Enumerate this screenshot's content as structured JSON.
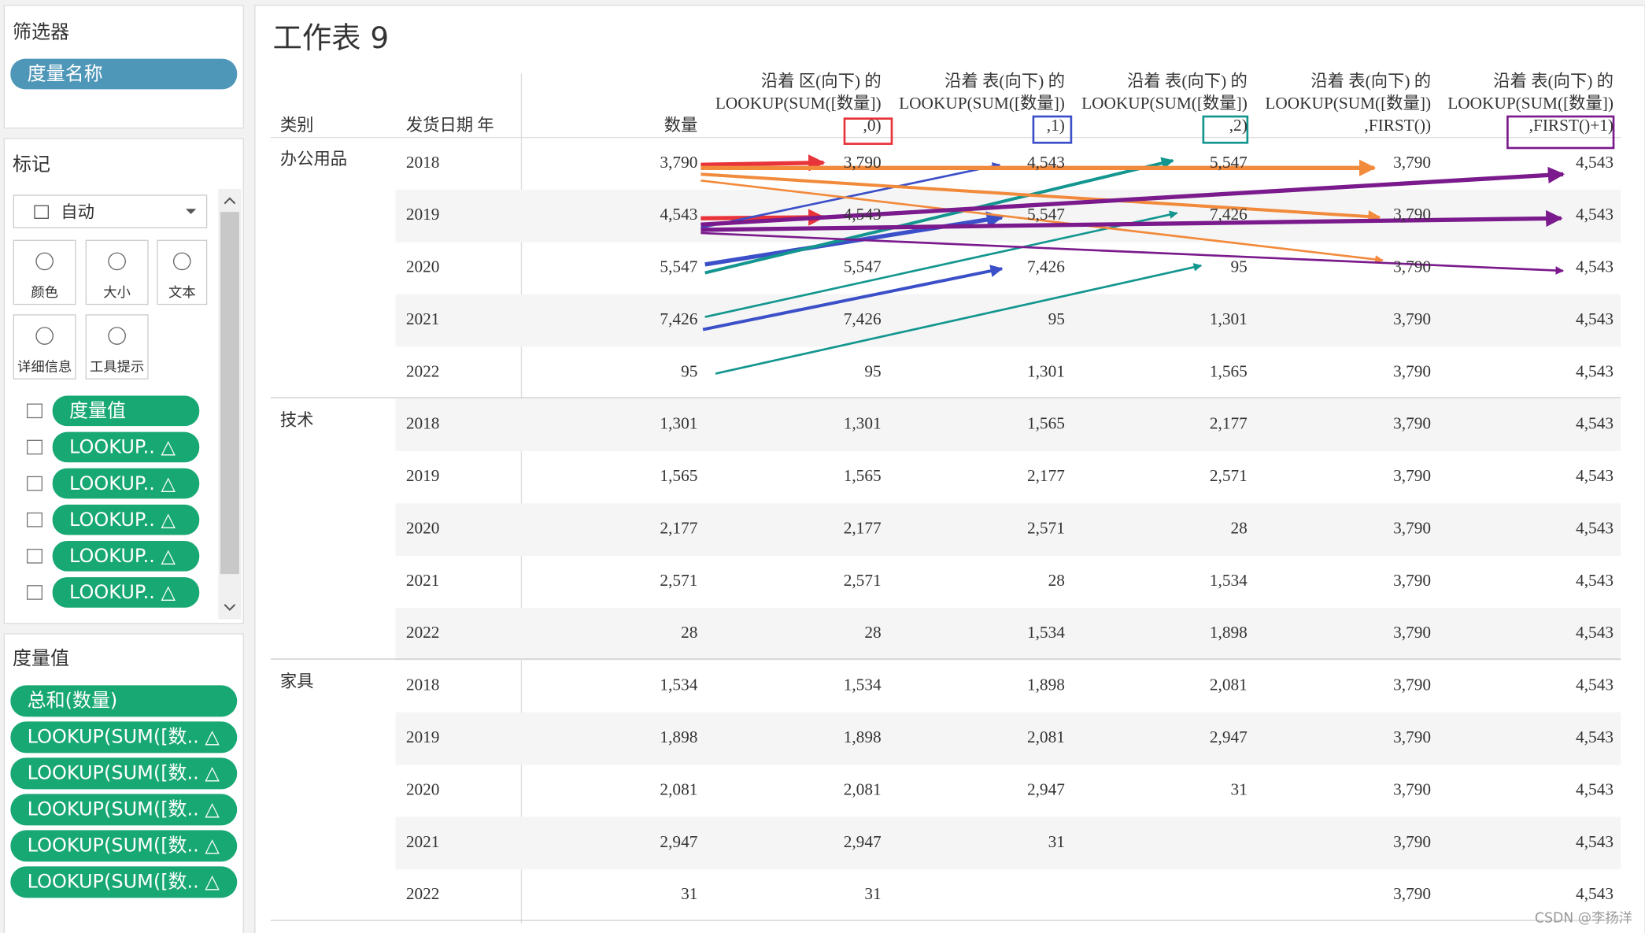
{
  "sidebar": {
    "filters": {
      "title": "筛选器",
      "pill": "度量名称"
    },
    "marks": {
      "title": "标记",
      "dropdown": "自动",
      "buttons": [
        "颜色",
        "大小",
        "文本",
        "详细信息",
        "工具提示"
      ],
      "pills": [
        "度量值",
        "LOOKUP.. △",
        "LOOKUP.. △",
        "LOOKUP.. △",
        "LOOKUP.. △",
        "LOOKUP.. △"
      ]
    },
    "measure_values": {
      "title": "度量值",
      "pills": [
        "总和(数量)",
        "LOOKUP(SUM([数.. △",
        "LOOKUP(SUM([数.. △",
        "LOOKUP(SUM([数.. △",
        "LOOKUP(SUM([数.. △",
        "LOOKUP(SUM([数.. △"
      ]
    }
  },
  "worksheet": {
    "title": "工作表 9",
    "row_headers": [
      "类别",
      "发货日期 年"
    ],
    "columns": [
      {
        "lines": [
          "数量"
        ]
      },
      {
        "lines": [
          "沿着 区(向下) 的",
          "LOOKUP(SUM([数量])",
          ",0)"
        ]
      },
      {
        "lines": [
          "沿着 表(向下) 的",
          "LOOKUP(SUM([数量])",
          ",1)"
        ]
      },
      {
        "lines": [
          "沿着 表(向下) 的",
          "LOOKUP(SUM([数量])",
          ",2)"
        ]
      },
      {
        "lines": [
          "沿着 表(向下) 的",
          "LOOKUP(SUM([数量])",
          ",FIRST())"
        ]
      },
      {
        "lines": [
          "沿着 表(向下) 的",
          "LOOKUP(SUM([数量])",
          ",FIRST()+1)"
        ]
      }
    ],
    "groups": [
      {
        "category": "办公用品",
        "rows": [
          {
            "year": "2018",
            "cells": [
              "3,790",
              "3,790",
              "4,543",
              "5,547",
              "3,790",
              "4,543"
            ]
          },
          {
            "year": "2019",
            "cells": [
              "4,543",
              "4,543",
              "5,547",
              "7,426",
              "3,790",
              "4,543"
            ]
          },
          {
            "year": "2020",
            "cells": [
              "5,547",
              "5,547",
              "7,426",
              "95",
              "3,790",
              "4,543"
            ]
          },
          {
            "year": "2021",
            "cells": [
              "7,426",
              "7,426",
              "95",
              "1,301",
              "3,790",
              "4,543"
            ]
          },
          {
            "year": "2022",
            "cells": [
              "95",
              "95",
              "1,301",
              "1,565",
              "3,790",
              "4,543"
            ]
          }
        ]
      },
      {
        "category": "技术",
        "rows": [
          {
            "year": "2018",
            "cells": [
              "1,301",
              "1,301",
              "1,565",
              "2,177",
              "3,790",
              "4,543"
            ]
          },
          {
            "year": "2019",
            "cells": [
              "1,565",
              "1,565",
              "2,177",
              "2,571",
              "3,790",
              "4,543"
            ]
          },
          {
            "year": "2020",
            "cells": [
              "2,177",
              "2,177",
              "2,571",
              "28",
              "3,790",
              "4,543"
            ]
          },
          {
            "year": "2021",
            "cells": [
              "2,571",
              "2,571",
              "28",
              "1,534",
              "3,790",
              "4,543"
            ]
          },
          {
            "year": "2022",
            "cells": [
              "28",
              "28",
              "1,534",
              "1,898",
              "3,790",
              "4,543"
            ]
          }
        ]
      },
      {
        "category": "家具",
        "rows": [
          {
            "year": "2018",
            "cells": [
              "1,534",
              "1,534",
              "1,898",
              "2,081",
              "3,790",
              "4,543"
            ]
          },
          {
            "year": "2019",
            "cells": [
              "1,898",
              "1,898",
              "2,081",
              "2,947",
              "3,790",
              "4,543"
            ]
          },
          {
            "year": "2020",
            "cells": [
              "2,081",
              "2,081",
              "2,947",
              "31",
              "3,790",
              "4,543"
            ]
          },
          {
            "year": "2021",
            "cells": [
              "2,947",
              "2,947",
              "31",
              null,
              "3,790",
              "4,543"
            ]
          },
          {
            "year": "2022",
            "cells": [
              "31",
              "31",
              null,
              null,
              "3,790",
              "4,543"
            ]
          }
        ]
      }
    ]
  },
  "watermark": "CSDN @李扬洋"
}
